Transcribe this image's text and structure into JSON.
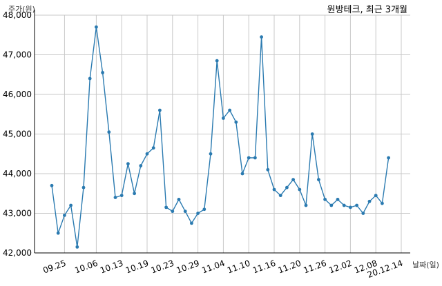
{
  "chart_data": {
    "type": "line",
    "title": "원방테크, 최근 3개월",
    "xlabel": "날짜(일)",
    "ylabel": "주가(원)",
    "ylim": [
      42000,
      48000
    ],
    "yticks": [
      42000,
      43000,
      44000,
      45000,
      46000,
      47000,
      48000
    ],
    "ytick_labels": [
      "42,000",
      "43,000",
      "44,000",
      "45,000",
      "46,000",
      "47,000",
      "48,000"
    ],
    "xticks": [
      {
        "index": 2,
        "label": "09.25"
      },
      {
        "index": 7,
        "label": "10.06"
      },
      {
        "index": 11,
        "label": "10.13"
      },
      {
        "index": 15,
        "label": "10.19"
      },
      {
        "index": 19,
        "label": "10.23"
      },
      {
        "index": 23,
        "label": "10.29"
      },
      {
        "index": 27,
        "label": "11.04"
      },
      {
        "index": 31,
        "label": "11.10"
      },
      {
        "index": 35,
        "label": "11.16"
      },
      {
        "index": 39,
        "label": "11.20"
      },
      {
        "index": 43,
        "label": "11.26"
      },
      {
        "index": 47,
        "label": "12.02"
      },
      {
        "index": 51,
        "label": "12.08"
      },
      {
        "index": 55,
        "label": "20.12.14"
      }
    ],
    "grid": true,
    "series": [
      {
        "values": [
          43700,
          42500,
          42950,
          43200,
          42150,
          43650,
          46400,
          47700,
          46550,
          45050,
          43400,
          43450,
          44250,
          43500,
          44200,
          44500,
          44650,
          45600,
          43150,
          43050,
          43350,
          43050,
          42750,
          43000,
          43100,
          44500,
          46850,
          45400,
          45600,
          45300,
          44000,
          44400,
          44400,
          47450,
          44100,
          43600,
          43450,
          43650,
          43850,
          43600,
          43200,
          45000,
          43850,
          43350,
          43200,
          43350,
          43200,
          43150,
          43200,
          43000,
          43300,
          43450,
          43250,
          44400
        ]
      }
    ]
  }
}
